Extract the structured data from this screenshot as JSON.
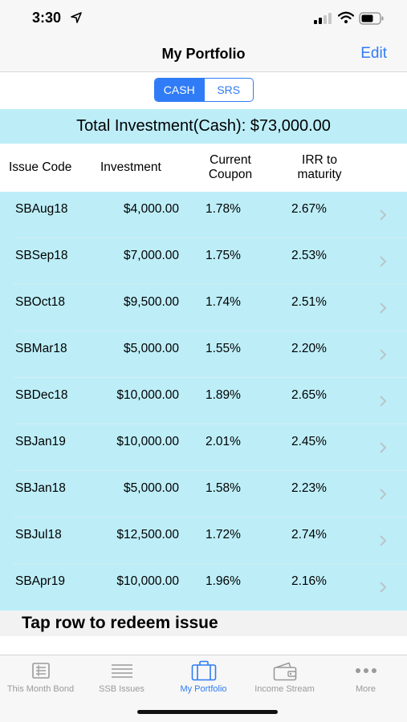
{
  "status_bar": {
    "time": "3:30"
  },
  "nav": {
    "title": "My Portfolio",
    "edit_label": "Edit"
  },
  "segment": {
    "cash_label": "CASH",
    "srs_label": "SRS",
    "selected": "CASH"
  },
  "total": {
    "text": "Total Investment(Cash): $73,000.00"
  },
  "table": {
    "headers": {
      "issue_code": "Issue Code",
      "investment": "Investment",
      "current_coupon_1": "Current",
      "current_coupon_2": "Coupon",
      "irr_1": "IRR to",
      "irr_2": "maturity"
    },
    "rows": [
      {
        "code": "SBAug18",
        "investment": "$4,000.00",
        "coupon": "1.78%",
        "irr": "2.67%"
      },
      {
        "code": "SBSep18",
        "investment": "$7,000.00",
        "coupon": "1.75%",
        "irr": "2.53%"
      },
      {
        "code": "SBOct18",
        "investment": "$9,500.00",
        "coupon": "1.74%",
        "irr": "2.51%"
      },
      {
        "code": "SBMar18",
        "investment": "$5,000.00",
        "coupon": "1.55%",
        "irr": "2.20%"
      },
      {
        "code": "SBDec18",
        "investment": "$10,000.00",
        "coupon": "1.89%",
        "irr": "2.65%"
      },
      {
        "code": "SBJan19",
        "investment": "$10,000.00",
        "coupon": "2.01%",
        "irr": "2.45%"
      },
      {
        "code": "SBJan18",
        "investment": "$5,000.00",
        "coupon": "1.58%",
        "irr": "2.23%"
      },
      {
        "code": "SBJul18",
        "investment": "$12,500.00",
        "coupon": "1.72%",
        "irr": "2.74%"
      },
      {
        "code": "SBApr19",
        "investment": "$10,000.00",
        "coupon": "1.96%",
        "irr": "2.16%"
      }
    ]
  },
  "footer_note": "Tap row to redeem issue",
  "tabs": [
    {
      "label": "This Month Bond",
      "icon": "document-icon"
    },
    {
      "label": "SSB Issues",
      "icon": "list-icon"
    },
    {
      "label": "My Portfolio",
      "icon": "briefcase-icon",
      "active": true
    },
    {
      "label": "Income Stream",
      "icon": "wallet-icon"
    },
    {
      "label": "More",
      "icon": "more-icon"
    }
  ],
  "colors": {
    "accent": "#2f7cf6",
    "row_bg": "#bdeef8",
    "tab_inactive": "#9a9a9a"
  }
}
